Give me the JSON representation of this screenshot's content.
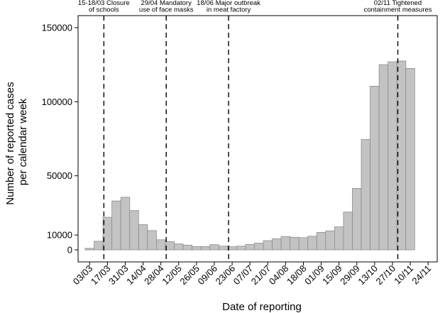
{
  "chart_data": {
    "type": "bar",
    "xlabel": "Date of reporting",
    "ylabel_lines": [
      "Number of reported cases",
      "per calendar week"
    ],
    "y_ticks": [
      0,
      10000,
      50000,
      100000,
      150000
    ],
    "y_tick_labels": [
      "0",
      "10000",
      "50000",
      "100000",
      "150000"
    ],
    "ylim": [
      0,
      160000
    ],
    "x_tick_labels": [
      "03/03",
      "17/03",
      "31/03",
      "14/04",
      "28/04",
      "12/05",
      "26/05",
      "09/06",
      "23/06",
      "07/07",
      "21/07",
      "04/08",
      "18/08",
      "01/09",
      "15/09",
      "29/09",
      "13/10",
      "27/10",
      "10/11",
      "24/11"
    ],
    "values": [
      1000,
      5800,
      22000,
      33000,
      35500,
      26500,
      17000,
      13000,
      6800,
      5500,
      4000,
      3200,
      2200,
      2200,
      3500,
      2500,
      2100,
      2500,
      3600,
      4500,
      6200,
      7500,
      9000,
      8500,
      8200,
      9200,
      11800,
      12800,
      15500,
      25500,
      41500,
      74500,
      110500,
      125000,
      127000,
      127500,
      122500
    ],
    "bar_color": "#c3c3c3",
    "bar_edge_color": "#8c8c8c",
    "grid": false,
    "events": [
      {
        "lines": [
          "15-18/03 Closure",
          "of schools"
        ],
        "bar_index": 2
      },
      {
        "lines": [
          "29/04 Mandatory",
          "use of face masks"
        ],
        "bar_index": 9
      },
      {
        "lines": [
          "18/06 Major outbreak",
          "in meat factory"
        ],
        "bar_index": 16
      },
      {
        "lines": [
          "02/11 Tightened",
          "containment measures"
        ],
        "bar_index": 35
      }
    ]
  }
}
